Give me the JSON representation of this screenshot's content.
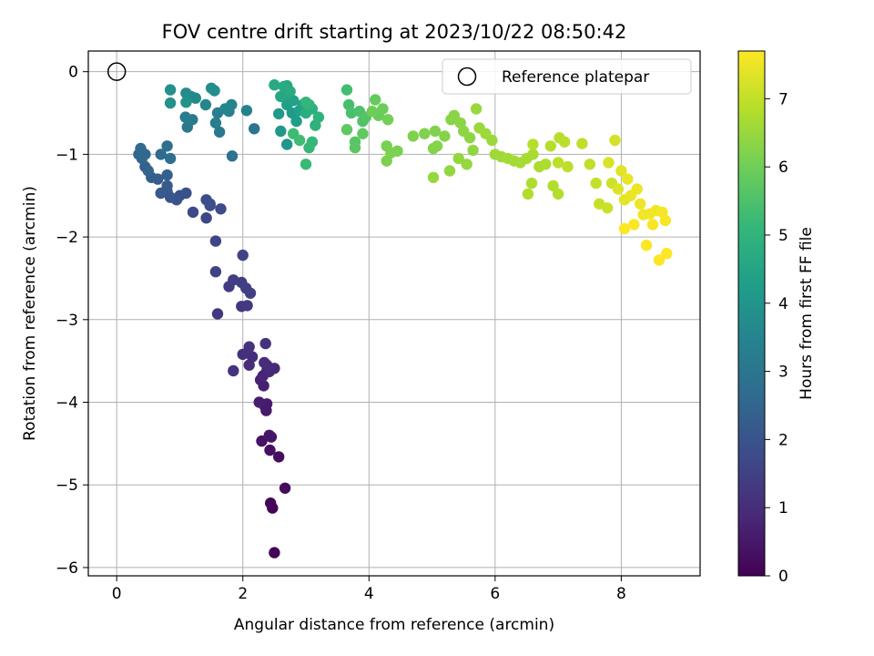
{
  "chart_data": {
    "type": "scatter",
    "title": "FOV centre drift starting at 2023/10/22 08:50:42",
    "xlabel": "Angular distance from reference (arcmin)",
    "ylabel": "Rotation from reference (arcmin)",
    "xlim": [
      -0.45,
      9.25
    ],
    "ylim": [
      -6.1,
      0.25
    ],
    "xticks": [
      0,
      2,
      4,
      6,
      8
    ],
    "yticks": [
      0,
      -1,
      -2,
      -3,
      -4,
      -5,
      -6
    ],
    "grid": true,
    "legend": {
      "placement": "top-right",
      "entries": [
        "Reference platepar"
      ]
    },
    "reference_point": {
      "x": 0,
      "y": 0,
      "marker": "open-circle"
    },
    "colorbar": {
      "label": "Hours from first FF file",
      "colormap": "viridis",
      "range": [
        0,
        7.7
      ],
      "ticks": [
        0,
        1,
        2,
        3,
        4,
        5,
        6,
        7
      ]
    },
    "colormap_stops": [
      "#440154",
      "#482878",
      "#3e4989",
      "#31688e",
      "#26828e",
      "#1f9e89",
      "#35b779",
      "#6ece58",
      "#b5de2b",
      "#fde725"
    ],
    "points": [
      [
        2.5,
        -5.82,
        0.02
      ],
      [
        2.47,
        -5.28,
        0.08
      ],
      [
        2.44,
        -5.22,
        0.12
      ],
      [
        2.67,
        -5.04,
        0.2
      ],
      [
        2.57,
        -4.66,
        0.28
      ],
      [
        2.43,
        -4.58,
        0.33
      ],
      [
        2.3,
        -4.47,
        0.38
      ],
      [
        2.45,
        -4.42,
        0.42
      ],
      [
        2.42,
        -4.4,
        0.45
      ],
      [
        2.37,
        -4.1,
        0.52
      ],
      [
        2.35,
        -4.05,
        0.56
      ],
      [
        2.38,
        -4.02,
        0.6
      ],
      [
        2.26,
        -4.0,
        0.64
      ],
      [
        2.33,
        -3.8,
        0.7
      ],
      [
        2.28,
        -3.73,
        0.74
      ],
      [
        2.32,
        -3.68,
        0.78
      ],
      [
        2.38,
        -3.62,
        0.82
      ],
      [
        2.42,
        -3.63,
        0.85
      ],
      [
        2.5,
        -3.59,
        0.88
      ],
      [
        2.38,
        -3.55,
        0.92
      ],
      [
        2.34,
        -3.52,
        0.95
      ],
      [
        2.1,
        -3.55,
        0.98
      ],
      [
        2.15,
        -3.45,
        1.02
      ],
      [
        2.0,
        -3.42,
        1.05
      ],
      [
        2.1,
        -3.33,
        1.08
      ],
      [
        2.36,
        -3.29,
        1.12
      ],
      [
        1.85,
        -3.62,
        1.15
      ],
      [
        1.6,
        -2.93,
        1.22
      ],
      [
        1.98,
        -2.84,
        1.26
      ],
      [
        2.07,
        -2.83,
        1.3
      ],
      [
        1.78,
        -2.6,
        1.35
      ],
      [
        1.85,
        -2.52,
        1.38
      ],
      [
        1.98,
        -2.55,
        1.42
      ],
      [
        2.05,
        -2.62,
        1.45
      ],
      [
        2.12,
        -2.68,
        1.48
      ],
      [
        1.57,
        -2.42,
        1.52
      ],
      [
        2.0,
        -2.22,
        1.56
      ],
      [
        1.57,
        -2.05,
        1.62
      ],
      [
        1.42,
        -1.77,
        1.68
      ],
      [
        1.21,
        -1.7,
        1.72
      ],
      [
        1.48,
        -1.62,
        1.76
      ],
      [
        1.65,
        -1.66,
        1.8
      ],
      [
        1.42,
        -1.55,
        1.84
      ],
      [
        1.48,
        -1.6,
        1.87
      ],
      [
        1.1,
        -1.47,
        1.92
      ],
      [
        1.0,
        -1.5,
        1.96
      ],
      [
        0.95,
        -1.55,
        2.0
      ],
      [
        0.85,
        -1.52,
        2.05
      ],
      [
        0.8,
        -1.45,
        2.1
      ],
      [
        0.7,
        -1.47,
        2.15
      ],
      [
        0.8,
        -1.38,
        2.2
      ],
      [
        0.65,
        -1.3,
        2.25
      ],
      [
        0.55,
        -1.28,
        2.3
      ],
      [
        0.8,
        -1.25,
        2.35
      ],
      [
        0.45,
        -1.15,
        2.4
      ],
      [
        0.5,
        -1.2,
        2.45
      ],
      [
        0.4,
        -1.05,
        2.5
      ],
      [
        0.35,
        -1.0,
        2.55
      ],
      [
        0.45,
        -1.0,
        2.6
      ],
      [
        0.38,
        -0.93,
        2.65
      ],
      [
        0.7,
        -1.0,
        2.7
      ],
      [
        0.85,
        -1.05,
        2.75
      ],
      [
        0.8,
        -0.9,
        2.8
      ],
      [
        1.83,
        -1.02,
        2.9
      ],
      [
        2.18,
        -0.69,
        3.0
      ],
      [
        1.12,
        -0.67,
        3.05
      ],
      [
        1.63,
        -0.73,
        3.1
      ],
      [
        1.2,
        -0.58,
        3.15
      ],
      [
        1.09,
        -0.55,
        3.2
      ],
      [
        1.57,
        -0.62,
        3.25
      ],
      [
        1.6,
        -0.5,
        3.3
      ],
      [
        1.78,
        -0.48,
        3.35
      ],
      [
        2.06,
        -0.47,
        3.4
      ],
      [
        1.82,
        -0.4,
        3.45
      ],
      [
        1.72,
        -0.45,
        3.5
      ],
      [
        1.41,
        -0.4,
        3.55
      ],
      [
        1.18,
        -0.3,
        3.6
      ],
      [
        1.25,
        -0.32,
        3.65
      ],
      [
        1.1,
        -0.26,
        3.7
      ],
      [
        1.5,
        -0.2,
        3.75
      ],
      [
        1.55,
        -0.23,
        3.8
      ],
      [
        0.85,
        -0.22,
        3.85
      ],
      [
        0.85,
        -0.38,
        3.9
      ],
      [
        1.1,
        -0.37,
        3.95
      ],
      [
        2.7,
        -0.88,
        4.05
      ],
      [
        2.6,
        -0.72,
        4.1
      ],
      [
        2.57,
        -0.51,
        4.15
      ],
      [
        2.78,
        -0.5,
        4.2
      ],
      [
        2.85,
        -0.6,
        4.25
      ],
      [
        2.9,
        -0.47,
        4.3
      ],
      [
        2.7,
        -0.4,
        4.35
      ],
      [
        2.8,
        -0.35,
        4.4
      ],
      [
        2.95,
        -0.4,
        4.45
      ],
      [
        2.68,
        -0.28,
        4.5
      ],
      [
        2.6,
        -0.3,
        4.55
      ],
      [
        2.7,
        -0.17,
        4.6
      ],
      [
        2.5,
        -0.16,
        4.65
      ],
      [
        2.65,
        -0.18,
        4.7
      ],
      [
        2.75,
        -0.24,
        4.75
      ],
      [
        3.0,
        -0.5,
        4.8
      ],
      [
        3.1,
        -0.45,
        4.85
      ],
      [
        3.15,
        -0.65,
        4.9
      ],
      [
        3.2,
        -0.55,
        4.95
      ],
      [
        3.05,
        -0.4,
        5.0
      ],
      [
        3.0,
        -0.37,
        5.05
      ],
      [
        3.1,
        -0.85,
        5.1
      ],
      [
        3.05,
        -0.92,
        5.15
      ],
      [
        3.0,
        -1.12,
        5.2
      ],
      [
        2.8,
        -0.75,
        5.25
      ],
      [
        2.9,
        -0.83,
        5.3
      ],
      [
        3.65,
        -0.22,
        5.35
      ],
      [
        3.68,
        -0.4,
        5.4
      ],
      [
        3.72,
        -0.5,
        5.45
      ],
      [
        3.85,
        -0.48,
        5.5
      ],
      [
        3.9,
        -0.6,
        5.55
      ],
      [
        3.95,
        -0.55,
        5.6
      ],
      [
        3.78,
        -0.85,
        5.65
      ],
      [
        3.78,
        -0.92,
        5.7
      ],
      [
        3.65,
        -0.7,
        5.75
      ],
      [
        3.9,
        -0.75,
        5.8
      ],
      [
        4.1,
        -0.34,
        5.85
      ],
      [
        4.15,
        -0.53,
        5.9
      ],
      [
        4.22,
        -0.45,
        5.95
      ],
      [
        4.05,
        -0.48,
        6.0
      ],
      [
        4.3,
        -0.58,
        6.05
      ],
      [
        4.28,
        -0.9,
        6.1
      ],
      [
        4.45,
        -0.96,
        6.12
      ],
      [
        4.35,
        -0.98,
        6.14
      ],
      [
        4.28,
        -1.08,
        6.16
      ],
      [
        4.7,
        -0.78,
        6.18
      ],
      [
        4.88,
        -0.75,
        6.2
      ],
      [
        5.05,
        -0.72,
        6.22
      ],
      [
        5.02,
        -0.93,
        6.24
      ],
      [
        5.08,
        -0.9,
        6.26
      ],
      [
        5.2,
        -0.78,
        6.28
      ],
      [
        5.3,
        -0.58,
        6.3
      ],
      [
        5.35,
        -0.53,
        6.32
      ],
      [
        5.45,
        -0.62,
        6.34
      ],
      [
        5.5,
        -0.72,
        6.36
      ],
      [
        5.6,
        -0.8,
        6.38
      ],
      [
        5.65,
        -0.95,
        6.4
      ],
      [
        5.28,
        -1.2,
        6.42
      ],
      [
        5.42,
        -1.05,
        6.44
      ],
      [
        5.55,
        -1.12,
        6.46
      ],
      [
        5.02,
        -1.28,
        6.48
      ],
      [
        5.7,
        -0.45,
        6.5
      ],
      [
        5.75,
        -0.68,
        6.52
      ],
      [
        5.95,
        -0.83,
        6.54
      ],
      [
        5.85,
        -0.75,
        6.56
      ],
      [
        6.0,
        -1.0,
        6.58
      ],
      [
        6.1,
        -1.03,
        6.6
      ],
      [
        6.2,
        -1.05,
        6.62
      ],
      [
        6.3,
        -1.08,
        6.64
      ],
      [
        6.4,
        -1.1,
        6.66
      ],
      [
        6.5,
        -1.05,
        6.68
      ],
      [
        6.6,
        -1.0,
        6.7
      ],
      [
        6.7,
        -1.15,
        6.72
      ],
      [
        6.8,
        -1.12,
        6.74
      ],
      [
        6.58,
        -1.35,
        6.76
      ],
      [
        6.52,
        -1.48,
        6.78
      ],
      [
        6.92,
        -1.38,
        6.8
      ],
      [
        7.0,
        -1.48,
        6.82
      ],
      [
        6.6,
        -0.88,
        6.84
      ],
      [
        6.88,
        -0.9,
        6.86
      ],
      [
        7.02,
        -0.8,
        6.88
      ],
      [
        7.1,
        -0.85,
        6.9
      ],
      [
        7.0,
        -1.1,
        6.92
      ],
      [
        7.15,
        -1.15,
        6.94
      ],
      [
        7.38,
        -0.87,
        6.96
      ],
      [
        7.5,
        -1.12,
        6.98
      ],
      [
        7.6,
        -1.35,
        7.0
      ],
      [
        7.65,
        -1.6,
        7.05
      ],
      [
        7.78,
        -1.65,
        7.1
      ],
      [
        7.85,
        -1.35,
        7.15
      ],
      [
        7.9,
        -0.83,
        7.2
      ],
      [
        7.8,
        -1.1,
        7.25
      ],
      [
        7.95,
        -1.42,
        7.3
      ],
      [
        8.0,
        -1.2,
        7.35
      ],
      [
        8.05,
        -1.55,
        7.4
      ],
      [
        8.1,
        -1.3,
        7.45
      ],
      [
        8.15,
        -1.5,
        7.48
      ],
      [
        8.25,
        -1.42,
        7.5
      ],
      [
        8.3,
        -1.6,
        7.52
      ],
      [
        8.35,
        -1.73,
        7.54
      ],
      [
        8.45,
        -1.72,
        7.56
      ],
      [
        8.55,
        -1.68,
        7.58
      ],
      [
        8.65,
        -1.7,
        7.6
      ],
      [
        8.7,
        -1.8,
        7.62
      ],
      [
        8.5,
        -1.85,
        7.64
      ],
      [
        8.4,
        -2.1,
        7.66
      ],
      [
        8.6,
        -2.28,
        7.68
      ],
      [
        8.72,
        -2.2,
        7.7
      ],
      [
        8.2,
        -1.85,
        7.65
      ],
      [
        8.05,
        -1.9,
        7.67
      ]
    ]
  }
}
